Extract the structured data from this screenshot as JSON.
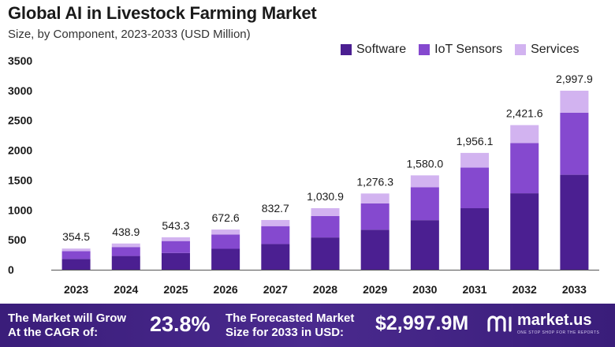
{
  "title": "Global AI in Livestock Farming Market",
  "subtitle": "Size, by Component, 2023-2033 (USD Million)",
  "legend": [
    {
      "label": "Software",
      "color": "#4b1f91"
    },
    {
      "label": "IoT Sensors",
      "color": "#8549cf"
    },
    {
      "label": "Services",
      "color": "#d2b3f0"
    }
  ],
  "chart_data": {
    "type": "bar",
    "stacked": true,
    "title": "Global AI in Livestock Farming Market",
    "subtitle": "Size, by Component, 2023-2033 (USD Million)",
    "categories": [
      "2023",
      "2024",
      "2025",
      "2026",
      "2027",
      "2028",
      "2029",
      "2030",
      "2031",
      "2032",
      "2033"
    ],
    "series": [
      {
        "name": "Software",
        "color": "#4b1f91",
        "values": [
          180,
          230,
          280,
          350,
          430,
          540,
          670,
          830,
          1030,
          1280,
          1590
        ]
      },
      {
        "name": "IoT Sensors",
        "color": "#8549cf",
        "values": [
          130,
          150,
          200,
          240,
          300,
          360,
          440,
          550,
          680,
          840,
          1040
        ]
      },
      {
        "name": "Services",
        "color": "#d2b3f0",
        "values": [
          44.5,
          58.9,
          63.3,
          82.6,
          102.7,
          130.9,
          166.3,
          200.0,
          246.1,
          301.6,
          367.9
        ]
      }
    ],
    "totals": [
      354.5,
      438.9,
      543.3,
      672.6,
      832.7,
      1030.9,
      1276.3,
      1580.0,
      1956.1,
      2421.6,
      2997.9
    ],
    "total_labels": [
      "354.5",
      "438.9",
      "543.3",
      "672.6",
      "832.7",
      "1,030.9",
      "1,276.3",
      "1,580.0",
      "1,956.1",
      "2,421.6",
      "2,997.9"
    ],
    "yticks": [
      0,
      500,
      1000,
      1500,
      2000,
      2500,
      3000,
      3500
    ],
    "ylim": [
      0,
      3500
    ],
    "xlabel": "",
    "ylabel": "",
    "legend_position": "top-right",
    "grid": false
  },
  "footer": {
    "cagr_text": "The Market will Grow\nAt the CAGR of:",
    "cagr_value": "23.8%",
    "forecast_text": "The Forecasted Market\nSize for 2033 in USD:",
    "forecast_value": "$2,997.9M",
    "brand": "market.us",
    "tagline": "ONE STOP SHOP FOR THE REPORTS",
    "icon": "market-us-logo-icon"
  }
}
